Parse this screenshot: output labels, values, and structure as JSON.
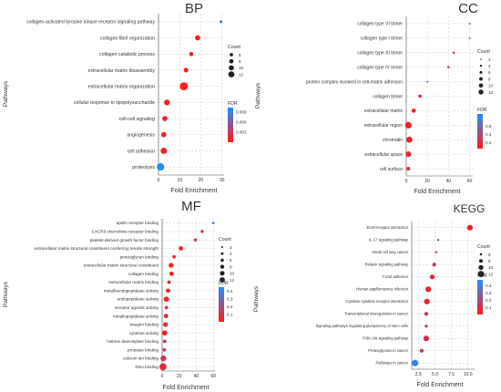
{
  "chart_data": [
    {
      "panel_id": "bp",
      "type": "scatter",
      "title": "BP",
      "xlabel": "Fold Enrichment",
      "ylabel": "Pathways",
      "x_ticks": [
        0,
        10,
        20,
        30
      ],
      "xlim": [
        0,
        31
      ],
      "categories": [
        "collagen-activated tyrosine kinase receptor signaling pathway",
        "collagen fibril organization",
        "collagen catabolic process",
        "extracellular matrix disassembly",
        "extracellular matrix organization",
        "cellular response to lipopolysaccharide",
        "cell-cell signaling",
        "angiogenesis",
        "cell adhesion",
        "proteolysis"
      ],
      "x": [
        29.5,
        18.5,
        15.5,
        13.0,
        12.0,
        4.0,
        3.0,
        2.5,
        2.5,
        1.0
      ],
      "count": [
        3,
        7,
        5,
        6,
        12,
        8,
        7,
        7,
        9,
        11
      ],
      "fdr": [
        0.0096,
        0.0001,
        0.0001,
        0.0001,
        0.0001,
        0.0002,
        0.0004,
        0.0004,
        0.0005,
        0.01
      ],
      "legend": {
        "count_title": "Count",
        "count_values": [
          6,
          8,
          10,
          12
        ],
        "fdr_title": "FDR",
        "fdr_labels": [
          "0.009",
          "0.006",
          "0.003"
        ],
        "fdr_values": [
          0.009,
          0.006,
          0.003
        ],
        "fdr_range": [
          0,
          0.0102
        ]
      }
    },
    {
      "panel_id": "cc",
      "type": "scatter",
      "title": "CC",
      "xlabel": "Fold Enrichment",
      "ylabel": "Pathways",
      "x_ticks": [
        0,
        20,
        40,
        60
      ],
      "xlim": [
        0,
        63
      ],
      "categories": [
        "collagen type VI trimer",
        "collagen type I trimer",
        "collagen type XI trimer",
        "collagen type IV trimer",
        "protein complex involved in cell-matrix adhesion",
        "collagen trimer",
        "extracellular matrix",
        "extracellular region",
        "chromatin",
        "extracellular space",
        "cell surface"
      ],
      "x": [
        60.0,
        60.0,
        45.0,
        40.0,
        20.0,
        13.0,
        7.0,
        2.0,
        3.0,
        2.0,
        2.0
      ],
      "count": [
        2,
        2,
        3,
        3,
        2,
        5,
        7,
        12,
        11,
        10,
        6
      ],
      "fdr": [
        0.7,
        0.7,
        0.22,
        0.26,
        0.85,
        0.12,
        0.1,
        0.1,
        0.12,
        0.12,
        0.15
      ],
      "legend": {
        "count_title": "Count",
        "count_values": [
          2,
          4,
          6,
          8,
          10,
          12
        ],
        "fdr_title": "FDR",
        "fdr_labels": [
          "0.6",
          "0.4",
          "0.2"
        ],
        "fdr_values": [
          0.6,
          0.4,
          0.2
        ],
        "fdr_range": [
          0.05,
          0.9
        ]
      }
    },
    {
      "panel_id": "mf",
      "type": "scatter",
      "title": "MF",
      "xlabel": "Fold Enrichment",
      "ylabel": "Pathways",
      "x_ticks": [
        0,
        20,
        40,
        60
      ],
      "xlim": [
        0,
        62
      ],
      "categories": [
        "apelin receptor binding",
        "CXCR3 chemokine receptor binding",
        "platelet-derived growth factor binding",
        "extracellular matrix structural constituent conferring tensile strength",
        "proteoglycan binding",
        "extracellular matrix structural constituent",
        "collagen binding",
        "extracellular matrix binding",
        "metalloendopeptidase activity",
        "endopeptidase activity",
        "receptor agonist activity",
        "metallopeptidase activity",
        "integrin binding",
        "cytokine activity",
        "histone deacetylase binding",
        "protease binding",
        "calcium ion binding",
        "DNA binding"
      ],
      "x": [
        60.0,
        47.0,
        39.0,
        22.0,
        14.0,
        10.5,
        11.0,
        8.0,
        7.0,
        5.0,
        5.0,
        4.5,
        4.0,
        3.0,
        3.0,
        2.5,
        1.5,
        1.0
      ],
      "count": [
        2,
        3,
        3,
        6,
        4,
        7,
        6,
        4,
        6,
        8,
        4,
        6,
        7,
        8,
        4,
        4,
        9,
        12
      ],
      "fdr": [
        0.4,
        0.1,
        0.06,
        0.02,
        0.06,
        0.01,
        0.02,
        0.08,
        0.05,
        0.03,
        0.1,
        0.08,
        0.06,
        0.04,
        0.11,
        0.13,
        0.1,
        0.06
      ],
      "legend": {
        "count_title": "Count",
        "count_values": [
          2,
          4,
          6,
          8,
          10,
          12
        ],
        "fdr_title": "FDR",
        "fdr_labels": [
          "0.4",
          "0.3",
          "0.2",
          "0.1"
        ],
        "fdr_values": [
          0.4,
          0.3,
          0.2,
          0.1
        ],
        "fdr_range": [
          0,
          0.45
        ]
      }
    },
    {
      "panel_id": "kegg",
      "type": "scatter",
      "title": "KEGG",
      "xlabel": "Fold Enrichment",
      "ylabel": "Pathways",
      "x_ticks": [
        2.5,
        5.0,
        7.5,
        10.0
      ],
      "x_tick_labels": [
        "2.5",
        "5.0",
        "7.5",
        "10.0"
      ],
      "xlim": [
        1.5,
        11.0
      ],
      "categories": [
        "ECM-receptor interaction",
        "IL-17 signaling pathway",
        "Small cell lung cancer",
        "Relaxin signaling pathway",
        "Focal adhesion",
        "Human papillomavirus infection",
        "Cytokine-cytokine receptor interaction",
        "Transcriptional misregulation in cancer",
        "Signaling pathways regulating pluripotency of stem cells",
        "PI3K-Akt signaling pathway",
        "Proteoglycans in cancer",
        "Pathways in cancer"
      ],
      "x": [
        10.3,
        5.5,
        5.2,
        4.9,
        4.6,
        4.0,
        3.8,
        3.7,
        3.7,
        3.7,
        3.0,
        2.0
      ],
      "count": [
        9,
        5,
        5,
        7,
        8,
        9,
        9,
        7,
        6,
        9,
        7,
        10
      ],
      "fdr": [
        0.05,
        0.2,
        0.15,
        0.12,
        0.08,
        0.06,
        0.06,
        0.15,
        0.18,
        0.1,
        0.2,
        0.45
      ],
      "legend": {
        "count_title": "Count",
        "count_values": [
          6,
          8,
          10,
          12
        ],
        "fdr_title": "FDR",
        "fdr_labels": [
          "0.4",
          "0.3",
          "0.2",
          "0.1"
        ],
        "fdr_values": [
          0.4,
          0.3,
          0.2,
          0.1
        ],
        "fdr_range": [
          0,
          0.48
        ]
      }
    }
  ],
  "colors": {
    "high_fdr": "#1e90ff",
    "low_fdr": "#ff1a1a",
    "grid": "#c8c8c8",
    "text": "#333333"
  }
}
